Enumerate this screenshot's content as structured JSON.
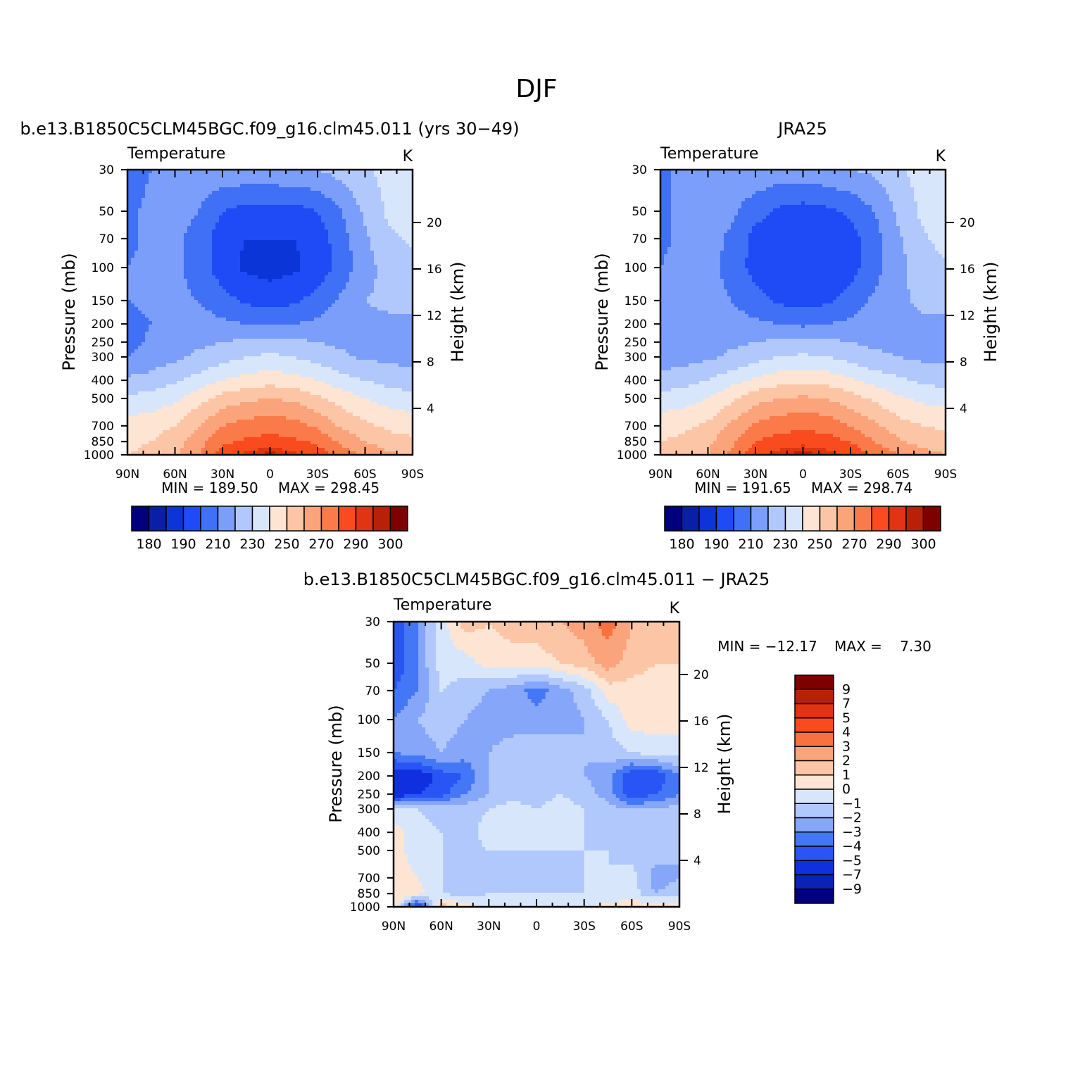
{
  "figure": {
    "title": "DJF"
  },
  "colors": {
    "temperature_scale": [
      "#00007f",
      "#0a1fa8",
      "#0c35d8",
      "#1e4bf6",
      "#3f70f5",
      "#7a9efa",
      "#b0c8fb",
      "#d8e6fc",
      "#fde4d3",
      "#fcc6a6",
      "#fba37a",
      "#fb7a4a",
      "#f94b1e",
      "#e03412",
      "#b92008",
      "#7f0000"
    ],
    "difference_scale": [
      "#00007f",
      "#0c22b5",
      "#1030e0",
      "#2a55f5",
      "#4477f5",
      "#86a6f9",
      "#b0c8fb",
      "#d8e6fc",
      "#fde4d3",
      "#fcc6a6",
      "#fba37a",
      "#f8713f",
      "#f94b1e",
      "#e03412",
      "#b92008",
      "#7f0000"
    ],
    "frame": "#000000"
  },
  "chart_data": [
    {
      "type": "heatmap",
      "panel_title": "b.e13.B1850C5CLM45BGC.f09_g16.clm45.011 (yrs 30−49)",
      "left_string": "Temperature",
      "right_string": "K",
      "xlabel": "",
      "ylabel": "Pressure (mb)",
      "ylabel_right": "Height (km)",
      "x_ticks": [
        "90N",
        "60N",
        "30N",
        "0",
        "30S",
        "60S",
        "90S"
      ],
      "x_values": [
        90,
        60,
        30,
        0,
        -30,
        -60,
        -90
      ],
      "y_ticks": [
        "30",
        "50",
        "70",
        "100",
        "150",
        "200",
        "250",
        "300",
        "400",
        "500",
        "700",
        "850",
        "1000"
      ],
      "y_values": [
        30,
        50,
        70,
        100,
        150,
        200,
        250,
        300,
        400,
        500,
        700,
        850,
        1000
      ],
      "y_scale": "log",
      "ylim": [
        1000,
        30
      ],
      "height_ticks": [
        "4",
        "8",
        "12",
        "16",
        "20"
      ],
      "height_values": [
        4,
        8,
        12,
        16,
        20
      ],
      "min_label": "MIN = 189.50",
      "max_label": "MAX = 298.45",
      "min": 189.5,
      "max": 298.45,
      "colorbar_orientation": "horizontal",
      "colorbar_labels": [
        "180",
        "190",
        "210",
        "230",
        "250",
        "270",
        "290",
        "300"
      ],
      "levels": [
        180,
        185,
        190,
        200,
        210,
        220,
        230,
        240,
        250,
        260,
        270,
        280,
        290,
        295,
        300
      ],
      "field": {
        "lat": [
          90,
          75,
          60,
          45,
          30,
          15,
          0,
          -15,
          -30,
          -45,
          -60,
          -75,
          -90
        ],
        "pressure": [
          30,
          50,
          70,
          100,
          150,
          200,
          250,
          300,
          400,
          500,
          700,
          850,
          1000
        ],
        "values": [
          [
            206,
            210,
            214,
            216,
            218,
            218,
            218,
            220,
            220,
            224,
            228,
            234,
            236
          ],
          [
            208,
            212,
            214,
            210,
            200,
            196,
            196,
            196,
            200,
            210,
            222,
            232,
            236
          ],
          [
            208,
            212,
            212,
            206,
            194,
            190,
            190,
            190,
            194,
            206,
            218,
            228,
            232
          ],
          [
            210,
            212,
            212,
            206,
            194,
            188,
            186,
            188,
            194,
            204,
            216,
            224,
            226
          ],
          [
            210,
            212,
            212,
            210,
            204,
            198,
            196,
            198,
            204,
            212,
            220,
            222,
            222
          ],
          [
            206,
            210,
            214,
            214,
            212,
            210,
            210,
            210,
            212,
            216,
            218,
            218,
            218
          ],
          [
            206,
            212,
            216,
            218,
            220,
            222,
            224,
            222,
            220,
            218,
            216,
            216,
            216
          ],
          [
            210,
            214,
            218,
            222,
            226,
            230,
            232,
            230,
            226,
            222,
            218,
            218,
            216
          ],
          [
            222,
            224,
            228,
            234,
            240,
            244,
            246,
            244,
            240,
            234,
            230,
            226,
            224
          ],
          [
            232,
            234,
            238,
            246,
            254,
            258,
            260,
            258,
            252,
            246,
            240,
            236,
            234
          ],
          [
            244,
            246,
            250,
            260,
            270,
            274,
            276,
            274,
            268,
            258,
            252,
            248,
            246
          ],
          [
            248,
            250,
            256,
            266,
            278,
            282,
            284,
            282,
            278,
            268,
            260,
            254,
            252
          ],
          [
            250,
            252,
            258,
            270,
            284,
            292,
            298,
            292,
            286,
            276,
            268,
            262,
            258
          ]
        ]
      }
    },
    {
      "type": "heatmap",
      "panel_title": "JRA25",
      "left_string": "Temperature",
      "right_string": "K",
      "xlabel": "",
      "ylabel": "Pressure (mb)",
      "ylabel_right": "Height (km)",
      "x_ticks": [
        "90N",
        "60N",
        "30N",
        "0",
        "30S",
        "60S",
        "90S"
      ],
      "x_values": [
        90,
        60,
        30,
        0,
        -30,
        -60,
        -90
      ],
      "y_ticks": [
        "30",
        "50",
        "70",
        "100",
        "150",
        "200",
        "250",
        "300",
        "400",
        "500",
        "700",
        "850",
        "1000"
      ],
      "y_values": [
        30,
        50,
        70,
        100,
        150,
        200,
        250,
        300,
        400,
        500,
        700,
        850,
        1000
      ],
      "y_scale": "log",
      "ylim": [
        1000,
        30
      ],
      "height_ticks": [
        "4",
        "8",
        "12",
        "16",
        "20"
      ],
      "height_values": [
        4,
        8,
        12,
        16,
        20
      ],
      "min_label": "MIN = 191.65",
      "max_label": "MAX = 298.74",
      "min": 191.65,
      "max": 298.74,
      "colorbar_orientation": "horizontal",
      "colorbar_labels": [
        "180",
        "190",
        "210",
        "230",
        "250",
        "270",
        "290",
        "300"
      ],
      "levels": [
        180,
        185,
        190,
        200,
        210,
        220,
        230,
        240,
        250,
        260,
        270,
        280,
        290,
        295,
        300
      ],
      "field": {
        "lat": [
          90,
          75,
          60,
          45,
          30,
          15,
          0,
          -15,
          -30,
          -45,
          -60,
          -75,
          -90
        ],
        "pressure": [
          30,
          50,
          70,
          100,
          150,
          200,
          250,
          300,
          400,
          500,
          700,
          850,
          1000
        ],
        "values": [
          [
            208,
            212,
            214,
            216,
            218,
            216,
            216,
            218,
            220,
            222,
            228,
            234,
            236
          ],
          [
            208,
            212,
            214,
            212,
            204,
            198,
            196,
            198,
            202,
            210,
            222,
            232,
            236
          ],
          [
            208,
            212,
            214,
            208,
            196,
            192,
            192,
            192,
            196,
            206,
            218,
            228,
            234
          ],
          [
            210,
            214,
            214,
            206,
            196,
            192,
            192,
            192,
            196,
            206,
            216,
            226,
            228
          ],
          [
            212,
            214,
            214,
            210,
            204,
            198,
            196,
            198,
            204,
            212,
            218,
            222,
            222
          ],
          [
            212,
            214,
            214,
            214,
            212,
            210,
            208,
            210,
            212,
            216,
            218,
            218,
            218
          ],
          [
            212,
            214,
            216,
            218,
            220,
            222,
            222,
            222,
            220,
            218,
            218,
            214,
            216
          ],
          [
            214,
            216,
            218,
            222,
            226,
            230,
            232,
            230,
            226,
            222,
            220,
            218,
            218
          ],
          [
            224,
            226,
            230,
            236,
            242,
            246,
            246,
            246,
            242,
            236,
            232,
            228,
            226
          ],
          [
            234,
            236,
            240,
            248,
            256,
            260,
            262,
            260,
            254,
            248,
            242,
            238,
            236
          ],
          [
            246,
            248,
            252,
            262,
            272,
            276,
            278,
            276,
            270,
            262,
            254,
            250,
            248
          ],
          [
            250,
            252,
            258,
            268,
            280,
            284,
            286,
            284,
            280,
            270,
            262,
            256,
            254
          ],
          [
            252,
            254,
            260,
            272,
            286,
            294,
            298,
            294,
            288,
            278,
            270,
            264,
            260
          ]
        ]
      }
    },
    {
      "type": "heatmap",
      "panel_title": "b.e13.B1850C5CLM45BGC.f09_g16.clm45.011 − JRA25",
      "left_string": "Temperature",
      "right_string": "K",
      "xlabel": "",
      "ylabel": "Pressure (mb)",
      "ylabel_right": "Height (km)",
      "x_ticks": [
        "90N",
        "60N",
        "30N",
        "0",
        "30S",
        "60S",
        "90S"
      ],
      "x_values": [
        90,
        60,
        30,
        0,
        -30,
        -60,
        -90
      ],
      "y_ticks": [
        "30",
        "50",
        "70",
        "100",
        "150",
        "200",
        "250",
        "300",
        "400",
        "500",
        "700",
        "850",
        "1000"
      ],
      "y_values": [
        30,
        50,
        70,
        100,
        150,
        200,
        250,
        300,
        400,
        500,
        700,
        850,
        1000
      ],
      "y_scale": "log",
      "ylim": [
        1000,
        30
      ],
      "height_ticks": [
        "4",
        "8",
        "12",
        "16",
        "20"
      ],
      "height_values": [
        4,
        8,
        12,
        16,
        20
      ],
      "min_label": "MIN = −12.17",
      "max_label": "MAX =    7.30",
      "min": -12.17,
      "max": 7.3,
      "colorbar_orientation": "vertical",
      "colorbar_labels": [
        "9",
        "7",
        "5",
        "4",
        "3",
        "2",
        "1",
        "0",
        "−1",
        "−2",
        "−3",
        "−4",
        "−5",
        "−7",
        "−9"
      ],
      "levels": [
        -9,
        -7,
        -5,
        -4,
        -3,
        -2,
        -1,
        0,
        1,
        2,
        3,
        4,
        5,
        7,
        9
      ],
      "field": {
        "lat": [
          90,
          75,
          60,
          45,
          30,
          15,
          0,
          -15,
          -30,
          -45,
          -60,
          -75,
          -90
        ],
        "pressure": [
          30,
          50,
          70,
          100,
          150,
          200,
          250,
          300,
          400,
          500,
          700,
          850,
          1000
        ],
        "values": [
          [
            -5,
            -3,
            -0.5,
            1.5,
            1,
            1.5,
            1.5,
            2,
            2.5,
            3.5,
            2,
            1.5,
            1.5
          ],
          [
            -5,
            -3,
            -0.5,
            -0.5,
            0.5,
            0.5,
            0.5,
            1,
            1.5,
            2.5,
            1.5,
            1,
            1
          ],
          [
            -4,
            -3,
            -1,
            -1.5,
            -2,
            -2.5,
            -3.5,
            -2.5,
            -1.5,
            0.5,
            0.5,
            0.5,
            0.5
          ],
          [
            -3,
            -2,
            -1.5,
            -2,
            -2.5,
            -2.5,
            -2.5,
            -2.5,
            -2,
            -1,
            0.5,
            0.5,
            0.5
          ],
          [
            -3,
            -2.5,
            -2,
            -2.5,
            -2,
            -1.5,
            -1.5,
            -1.5,
            -2,
            -1.5,
            -1,
            -0.5,
            -0.5
          ],
          [
            -6,
            -6,
            -4.5,
            -4,
            -2,
            -1.5,
            -1.5,
            -1.5,
            -2,
            -2.5,
            -5,
            -5,
            -3
          ],
          [
            -6,
            -5,
            -4.5,
            -3,
            -2,
            -1.5,
            -1.5,
            -1,
            -1.5,
            -2.5,
            -5,
            -4,
            -3
          ],
          [
            -1,
            -1,
            -1.5,
            -1.5,
            -1,
            -0.5,
            -1,
            -0.5,
            -1,
            -1.5,
            -2,
            -2,
            -1.5
          ],
          [
            0.5,
            -0.5,
            -1,
            -1.5,
            -0.5,
            -0.5,
            -0.5,
            -0.5,
            -1,
            -1.5,
            -1.5,
            -1.5,
            -1
          ],
          [
            0.5,
            -0.5,
            -1,
            -1.5,
            -1,
            -1,
            -1,
            -1,
            -1,
            -1,
            -1.5,
            -1.5,
            -2
          ],
          [
            0.5,
            0,
            -1,
            -1.5,
            -1.5,
            -1.5,
            -1.5,
            -1.5,
            -1,
            -1,
            -0.5,
            -2.5,
            -2
          ],
          [
            1,
            0.5,
            -1,
            -1.5,
            -1,
            -1,
            -1,
            -1,
            -1,
            -1,
            -0.5,
            -2,
            -1.5
          ],
          [
            1,
            -6,
            1.5,
            0.5,
            -0.5,
            -0.5,
            -0.5,
            -0.5,
            -0.5,
            0.5,
            0.5,
            1,
            1
          ]
        ]
      }
    }
  ]
}
